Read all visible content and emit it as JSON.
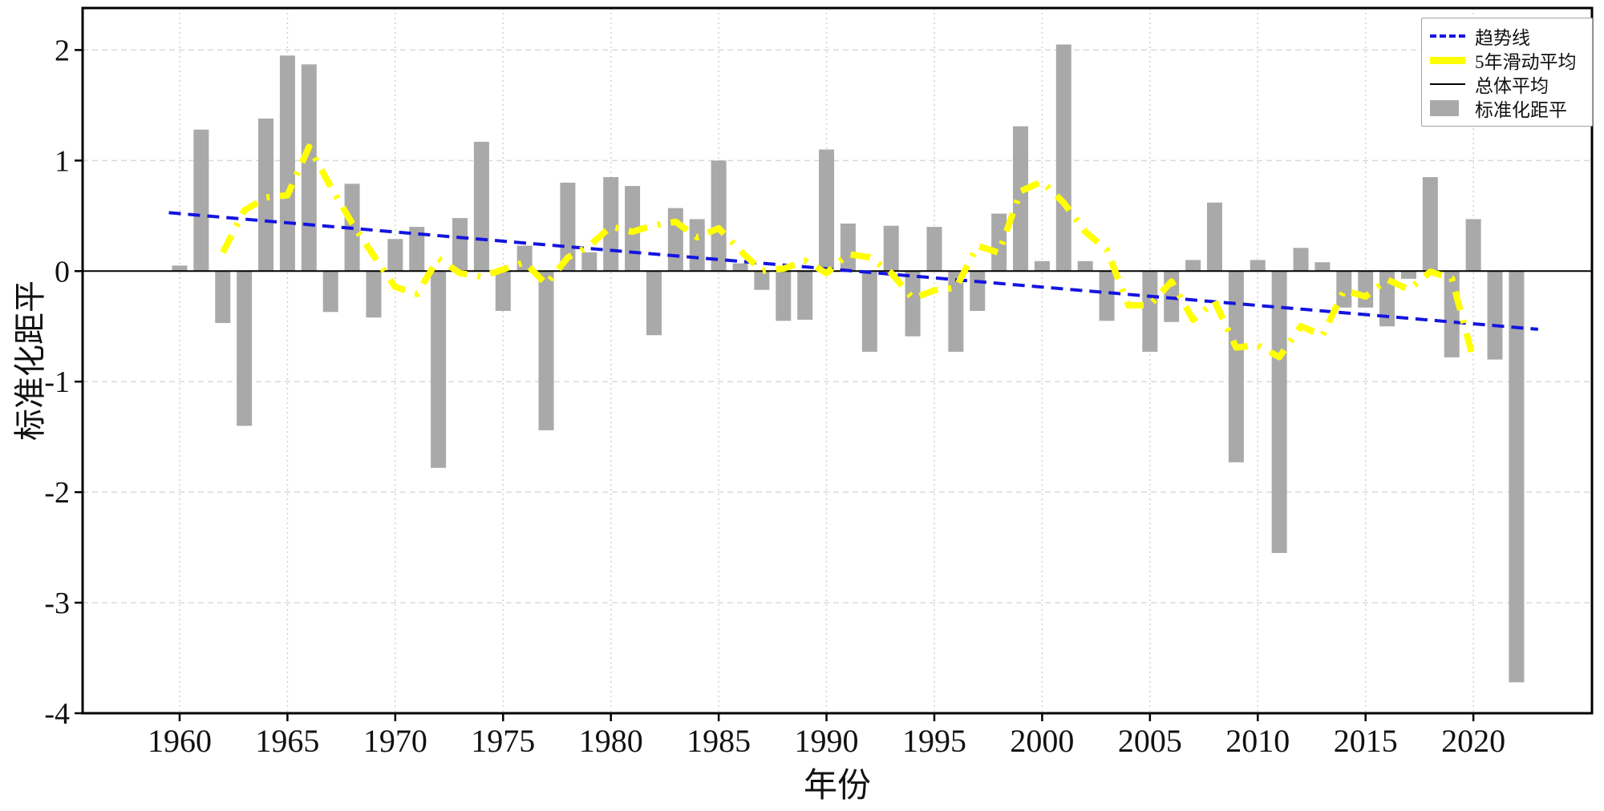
{
  "chart_data": {
    "type": "bar",
    "title": "",
    "xlabel": "年份",
    "ylabel": "标准化距平",
    "xlim": [
      1955.5,
      2025.5
    ],
    "ylim": [
      -4,
      2.38
    ],
    "x_ticks": [
      1960,
      1965,
      1970,
      1975,
      1980,
      1985,
      1990,
      1995,
      2000,
      2005,
      2010,
      2015,
      2020
    ],
    "y_ticks": [
      -4,
      -3,
      -2,
      -1,
      0,
      1,
      2
    ],
    "grid": true,
    "legend_position": "top-right",
    "colors": {
      "bar": "#a9a9a9",
      "trend": "#1414e0",
      "moving_avg": "#ffff00",
      "mean_line": "#000000",
      "grid_h": "#d9d9d9",
      "grid_v": "#d2d2d2",
      "frame": "#000000"
    },
    "years": [
      1960,
      1961,
      1962,
      1963,
      1964,
      1965,
      1966,
      1967,
      1968,
      1969,
      1970,
      1971,
      1972,
      1973,
      1974,
      1975,
      1976,
      1977,
      1978,
      1979,
      1980,
      1981,
      1982,
      1983,
      1984,
      1985,
      1986,
      1987,
      1988,
      1989,
      1990,
      1991,
      1992,
      1993,
      1994,
      1995,
      1996,
      1997,
      1998,
      1999,
      2000,
      2001,
      2002,
      2003,
      2004,
      2005,
      2006,
      2007,
      2008,
      2009,
      2010,
      2011,
      2012,
      2013,
      2014,
      2015,
      2016,
      2017,
      2018,
      2019,
      2020,
      2021,
      2022
    ],
    "series": [
      {
        "name": "标准化距平",
        "type": "bar",
        "color": "#a9a9a9",
        "values": [
          0.05,
          1.28,
          -0.47,
          -1.4,
          1.38,
          1.95,
          1.87,
          -0.37,
          0.79,
          -0.42,
          0.29,
          0.4,
          -1.78,
          0.48,
          1.17,
          -0.36,
          0.23,
          -1.44,
          0.8,
          0.17,
          0.85,
          0.77,
          -0.58,
          0.57,
          0.47,
          1.0,
          0.07,
          -0.17,
          -0.45,
          -0.44,
          1.1,
          0.43,
          -0.73,
          0.41,
          -0.59,
          0.4,
          -0.73,
          -0.36,
          0.52,
          1.31,
          0.09,
          2.05,
          0.09,
          -0.45,
          0.0,
          -0.73,
          -0.46,
          0.1,
          0.62,
          -1.73,
          0.1,
          -2.55,
          0.21,
          0.08,
          -0.33,
          -0.33,
          -0.5,
          -0.07,
          0.85,
          -0.78,
          0.47,
          -0.8,
          -3.72
        ]
      },
      {
        "name": "趋势线",
        "type": "line",
        "style": "dashed",
        "color": "#1414e0",
        "points": [
          {
            "x": 1960,
            "y": 0.52
          },
          {
            "x": 2022,
            "y": -0.51
          }
        ]
      },
      {
        "name": "5年滑动平均",
        "type": "line",
        "style": "dashdot",
        "color": "#ffff00",
        "derived": "centered_moving_average",
        "window": 5,
        "span": [
          1962,
          2020
        ]
      },
      {
        "name": "总体平均",
        "type": "line",
        "style": "solid",
        "color": "#000000",
        "value": 0
      }
    ],
    "legend_items": [
      {
        "label": "趋势线",
        "swatch": "dashed-blue"
      },
      {
        "label": "5年滑动平均",
        "swatch": "thick-yellow"
      },
      {
        "label": "总体平均",
        "swatch": "thin-black"
      },
      {
        "label": "标准化距平",
        "swatch": "gray-box"
      }
    ]
  }
}
